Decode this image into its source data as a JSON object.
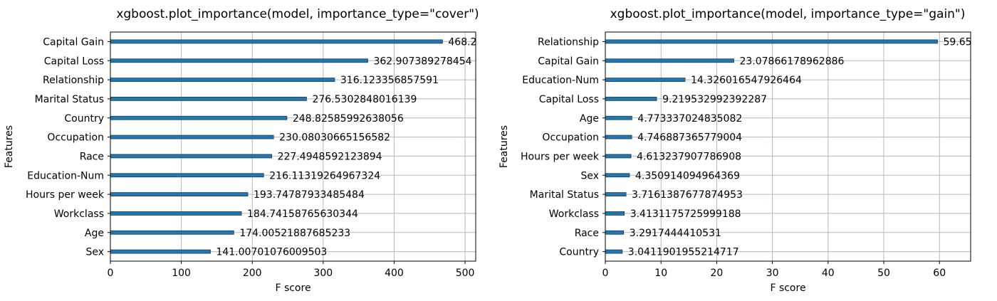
{
  "chart_data": [
    {
      "type": "bar",
      "orientation": "horizontal",
      "title": "xgboost.plot_importance(model, importance_type=\"cover\")",
      "xlabel": "F score",
      "ylabel": "Features",
      "xlim": [
        0,
        515
      ],
      "xticks": [
        0,
        100,
        200,
        300,
        400,
        500
      ],
      "grid": true,
      "categories": [
        "Capital Gain",
        "Capital Loss",
        "Relationship",
        "Marital Status",
        "Country",
        "Occupation",
        "Race",
        "Education-Num",
        "Hours per week",
        "Workclass",
        "Age",
        "Sex"
      ],
      "values": [
        468.2,
        362.907389278454,
        316.123356857591,
        276.5302848016139,
        248.82585992638056,
        230.08030665156582,
        227.4948592123894,
        216.11319264967324,
        193.74787933485484,
        184.74158765630344,
        174.00521887685233,
        141.00701076009503
      ],
      "value_labels": [
        "468.2",
        "362.907389278454",
        "316.123356857591",
        "276.5302848016139",
        "248.82585992638056",
        "230.08030665156582",
        "227.4948592123894",
        "216.11319264967324",
        "193.74787933485484",
        "184.74158765630344",
        "174.00521887685233",
        "141.00701076009503"
      ],
      "bar_color": "#1f77b4"
    },
    {
      "type": "bar",
      "orientation": "horizontal",
      "title": "xgboost.plot_importance(model, importance_type=\"gain\")",
      "xlabel": "F score",
      "ylabel": "Features",
      "xlim": [
        0,
        65.6
      ],
      "xticks": [
        0,
        10,
        20,
        30,
        40,
        50,
        60
      ],
      "grid": true,
      "categories": [
        "Relationship",
        "Capital Gain",
        "Education-Num",
        "Capital Loss",
        "Age",
        "Occupation",
        "Hours per week",
        "Sex",
        "Marital Status",
        "Workclass",
        "Race",
        "Country"
      ],
      "values": [
        59.65,
        23.07866178962886,
        14.326016547926464,
        9.219532992392287,
        4.773337024835082,
        4.746887365779004,
        4.613237907786908,
        4.350914094964369,
        3.7161387677874953,
        3.4131175725999188,
        3.2917444410531,
        3.0411901955214717
      ],
      "value_labels": [
        "59.65",
        "23.07866178962886",
        "14.326016547926464",
        "9.219532992392287",
        "4.773337024835082",
        "4.746887365779004",
        "4.613237907786908",
        "4.350914094964369",
        "3.7161387677874953",
        "3.4131175725999188",
        "3.2917444410531",
        "3.0411901955214717"
      ],
      "bar_color": "#1f77b4"
    }
  ]
}
